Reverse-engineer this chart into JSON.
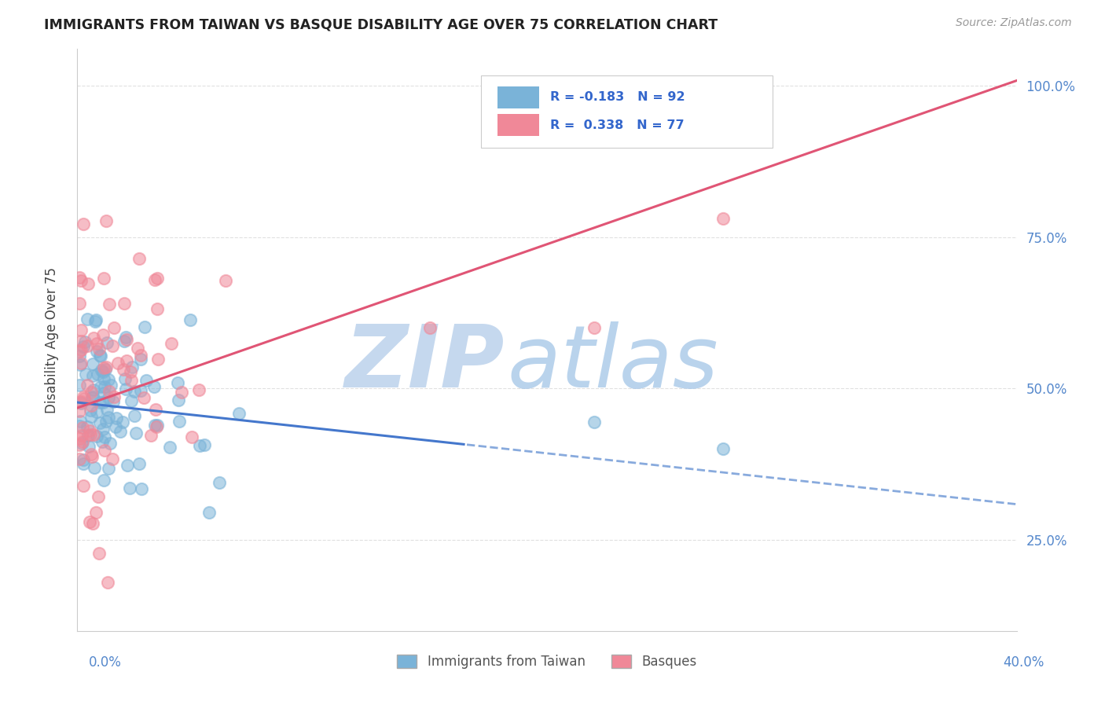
{
  "title": "IMMIGRANTS FROM TAIWAN VS BASQUE DISABILITY AGE OVER 75 CORRELATION CHART",
  "source": "Source: ZipAtlas.com",
  "ylabel": "Disability Age Over 75",
  "ytick_labels": [
    "25.0%",
    "50.0%",
    "75.0%",
    "100.0%"
  ],
  "ytick_values": [
    0.25,
    0.5,
    0.75,
    1.0
  ],
  "legend_bottom": [
    "Immigrants from Taiwan",
    "Basques"
  ],
  "taiwan_color": "#7ab3d8",
  "basque_color": "#f08898",
  "taiwan_line_color": "#4477cc",
  "basque_line_color": "#e05575",
  "taiwan_line_color_dash": "#88aadd",
  "watermark_zip": "ZIP",
  "watermark_atlas": "atlas",
  "watermark_color": "#c5d8ee",
  "taiwan_R": -0.183,
  "taiwan_N": 92,
  "basque_R": 0.338,
  "basque_N": 77,
  "xlim": [
    0.0,
    0.4
  ],
  "ylim_low": 0.1,
  "ylim_high": 1.06,
  "grid_color": "#dddddd",
  "grid_style": "--",
  "bg_color": "#ffffff",
  "tick_color": "#5588cc",
  "title_color": "#222222",
  "source_color": "#999999",
  "legend_box_color": "#ffffff",
  "legend_box_edge": "#cccccc"
}
